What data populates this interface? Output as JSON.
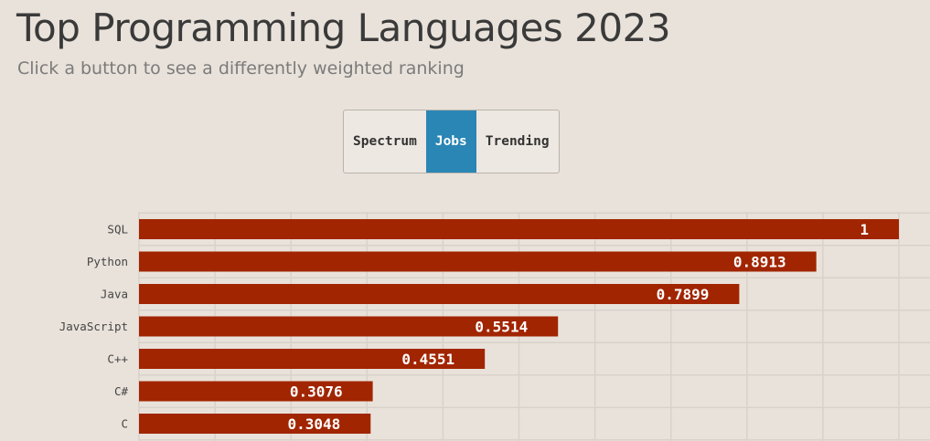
{
  "header": {
    "title": "Top Programming Languages 2023",
    "subtitle": "Click a button to see a differently weighted ranking"
  },
  "buttons": [
    {
      "label": "Spectrum",
      "active": false
    },
    {
      "label": "Jobs",
      "active": true
    },
    {
      "label": "Trending",
      "active": false
    }
  ],
  "colors": {
    "background": "#e9e2da",
    "bar": "#a12500",
    "active_button": "#2a86b4",
    "grid": "#d9d2ca"
  },
  "chart_data": {
    "type": "bar",
    "orientation": "horizontal",
    "categories": [
      "SQL",
      "Python",
      "Java",
      "JavaScript",
      "C++",
      "C#",
      "C"
    ],
    "values": [
      1,
      0.8913,
      0.7899,
      0.5514,
      0.4551,
      0.3076,
      0.3048
    ],
    "value_labels": [
      "1",
      "0.8913",
      "0.7899",
      "0.5514",
      "0.4551",
      "0.3076",
      "0.3048"
    ],
    "xlim": [
      0,
      1
    ],
    "grid": true
  }
}
